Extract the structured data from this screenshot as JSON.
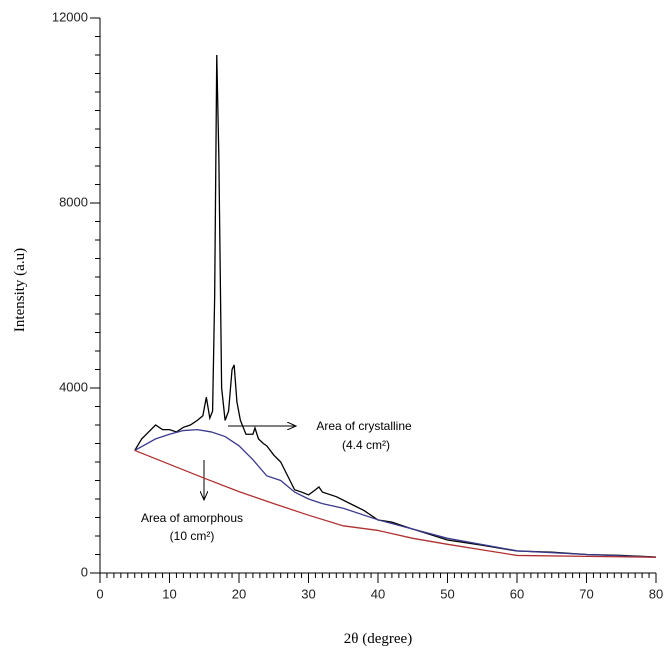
{
  "chart_data": {
    "type": "line",
    "xlabel": "2θ (degree)",
    "ylabel": "Intensity (a.u)",
    "xlim": [
      0,
      80
    ],
    "xticks": [
      0,
      10,
      20,
      30,
      40,
      50,
      60,
      70,
      80
    ],
    "xminor": 1,
    "ylim": [
      0,
      12000
    ],
    "yticks": [
      0,
      4000,
      8000,
      12000
    ],
    "yminor": 400,
    "series": [
      {
        "color": "#000000",
        "x": [
          5,
          6,
          7,
          8,
          9,
          10,
          11,
          12,
          13,
          14,
          14.8,
          15.3,
          15.8,
          16.2,
          16.5,
          16.8,
          17.1,
          17.5,
          18,
          18.5,
          19,
          19.3,
          19.7,
          20.2,
          21,
          22,
          22.3,
          22.8,
          23.5,
          24,
          25,
          26,
          27,
          28,
          29,
          30,
          31,
          31.5,
          32,
          34,
          36,
          38,
          40,
          42,
          45,
          50,
          55,
          60,
          65,
          70,
          75,
          80
        ],
        "values": [
          2650,
          2900,
          3050,
          3200,
          3100,
          3100,
          3050,
          3150,
          3200,
          3300,
          3400,
          3800,
          3350,
          3500,
          6000,
          11200,
          9000,
          4000,
          3300,
          3500,
          4400,
          4500,
          3700,
          3300,
          3000,
          3000,
          3135,
          2900,
          2800,
          2750,
          2550,
          2400,
          2100,
          1800,
          1750,
          1690,
          1800,
          1860,
          1750,
          1650,
          1500,
          1350,
          1146,
          1100,
          950,
          713,
          600,
          475,
          450,
          400,
          380,
          346
        ]
      },
      {
        "color": "#3a3a8c",
        "x": [
          5,
          8,
          10,
          12,
          14,
          16,
          18,
          20,
          22,
          24,
          26,
          28,
          30,
          32,
          35,
          40,
          45,
          50,
          60,
          70,
          80
        ],
        "values": [
          2650,
          2900,
          3000,
          3080,
          3100,
          3050,
          2950,
          2750,
          2450,
          2100,
          2000,
          1750,
          1600,
          1500,
          1400,
          1150,
          950,
          750,
          480,
          400,
          340
        ]
      },
      {
        "color": "#b03030",
        "x": [
          5,
          10,
          15,
          20,
          25,
          30,
          35,
          40,
          45,
          50,
          55,
          60,
          70,
          80
        ],
        "values": [
          2650,
          2350,
          2050,
          1760,
          1500,
          1250,
          1020,
          920,
          750,
          620,
          500,
          380,
          360,
          340
        ]
      }
    ],
    "annotations": [
      {
        "lines": [
          "Area of crystalline",
          "(4.4 cm²)"
        ]
      },
      {
        "lines": [
          "Area of amorphous",
          "(10 cm²)"
        ]
      }
    ]
  }
}
